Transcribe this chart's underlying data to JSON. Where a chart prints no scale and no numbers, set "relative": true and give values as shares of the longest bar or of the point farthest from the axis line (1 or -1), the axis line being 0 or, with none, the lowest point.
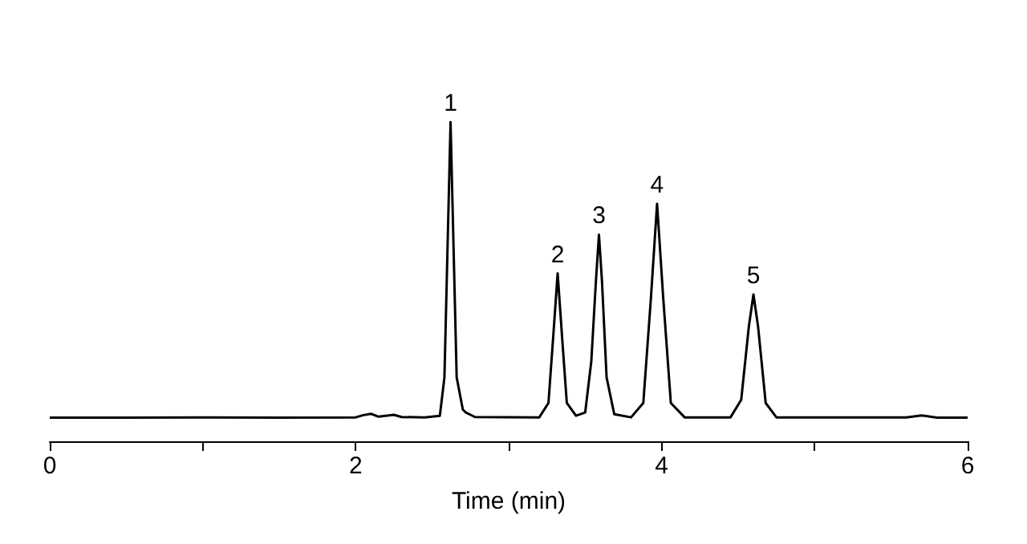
{
  "chart_data": {
    "type": "line",
    "relative": true,
    "xlabel": "Time (min)",
    "xlim": [
      0,
      6
    ],
    "xticks": [
      0,
      {
        "value": 1,
        "label": null
      },
      2,
      {
        "value": 3,
        "label": null
      },
      4,
      {
        "value": 5,
        "label": null
      },
      6
    ],
    "tick_labels": "x",
    "grid": false,
    "marker": "none",
    "line_style": "solid",
    "series": [
      {
        "color": "#000000",
        "x": [
          0,
          0.5,
          1.0,
          1.5,
          2.0,
          2.05,
          2.1,
          2.15,
          2.25,
          2.3,
          2.45,
          2.55,
          2.58,
          2.6,
          2.62,
          2.64,
          2.66,
          2.7,
          2.72,
          2.78,
          3.2,
          3.26,
          3.29,
          3.32,
          3.35,
          3.38,
          3.44,
          3.5,
          3.54,
          3.57,
          3.59,
          3.61,
          3.64,
          3.69,
          3.8,
          3.88,
          3.93,
          3.97,
          4.01,
          4.06,
          4.15,
          4.45,
          4.52,
          4.57,
          4.6,
          4.63,
          4.68,
          4.75,
          5.6,
          5.7,
          5.8,
          6.0
        ],
        "values": [
          0.074,
          0.074,
          0.075,
          0.074,
          0.075,
          0.082,
          0.086,
          0.077,
          0.083,
          0.076,
          0.075,
          0.08,
          0.2,
          0.6,
          1.0,
          0.6,
          0.2,
          0.1,
          0.09,
          0.076,
          0.075,
          0.12,
          0.32,
          0.526,
          0.32,
          0.12,
          0.08,
          0.09,
          0.25,
          0.5,
          0.647,
          0.5,
          0.2,
          0.085,
          0.075,
          0.12,
          0.45,
          0.744,
          0.45,
          0.12,
          0.075,
          0.075,
          0.13,
          0.36,
          0.46,
          0.36,
          0.12,
          0.075,
          0.075,
          0.081,
          0.074,
          0.074
        ]
      }
    ],
    "annotations": [
      {
        "text": "1",
        "x": 2.62,
        "y": 1.0
      },
      {
        "text": "2",
        "x": 3.32,
        "y": 0.526
      },
      {
        "text": "3",
        "x": 3.59,
        "y": 0.647
      },
      {
        "text": "4",
        "x": 3.97,
        "y": 0.744
      },
      {
        "text": "5",
        "x": 4.6,
        "y": 0.46
      }
    ]
  }
}
